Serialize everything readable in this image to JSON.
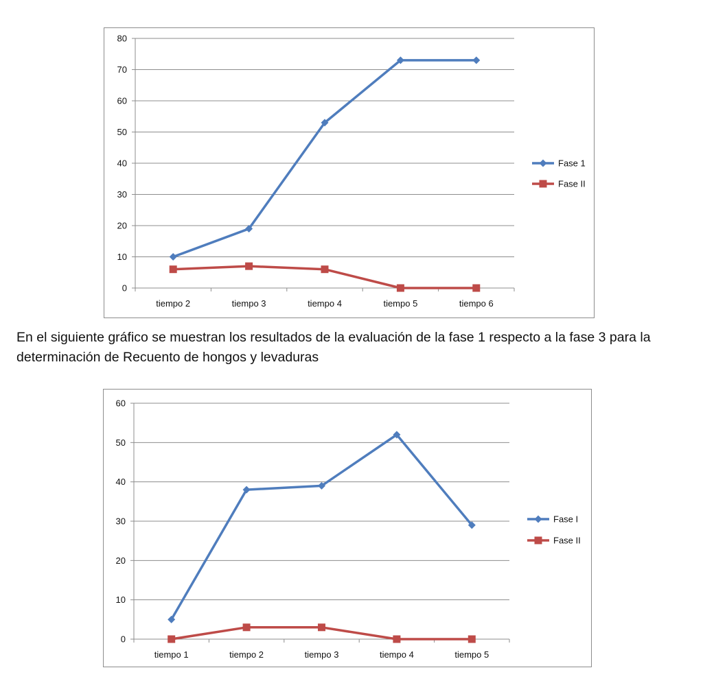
{
  "caption": "En el siguiente gráfico se muestran los resultados de la evaluación de la fase 1 respecto a la fase 3 para la determinación de Recuento de hongos y levaduras",
  "colors": {
    "series1": "#4f7dbd",
    "series2": "#be4b48",
    "grid": "#8c8c8c",
    "border": "#8c8c8c"
  },
  "chart_data": [
    {
      "type": "line",
      "title": "",
      "xlabel": "",
      "ylabel": "",
      "categories": [
        "tiempo 2",
        "tiempo 3",
        "tiempo 4",
        "tiempo 5",
        "tiempo 6"
      ],
      "ylim": [
        0,
        80
      ],
      "yticks": [
        0,
        10,
        20,
        30,
        40,
        50,
        60,
        70,
        80
      ],
      "grid": true,
      "legend_position": "right",
      "series": [
        {
          "name": "Fase 1",
          "marker": "diamond",
          "values": [
            10,
            19,
            53,
            73,
            73
          ]
        },
        {
          "name": "Fase II",
          "marker": "square",
          "values": [
            6,
            7,
            6,
            0,
            0
          ]
        }
      ]
    },
    {
      "type": "line",
      "title": "",
      "xlabel": "",
      "ylabel": "",
      "categories": [
        "tiempo 1",
        "tiempo 2",
        "tiempo 3",
        "tiempo 4",
        "tiempo 5"
      ],
      "ylim": [
        0,
        60
      ],
      "yticks": [
        0,
        10,
        20,
        30,
        40,
        50,
        60
      ],
      "grid": true,
      "legend_position": "right",
      "series": [
        {
          "name": "Fase I",
          "marker": "diamond",
          "values": [
            5,
            38,
            39,
            52,
            29
          ]
        },
        {
          "name": "Fase II",
          "marker": "square",
          "values": [
            0,
            3,
            3,
            0,
            0
          ]
        }
      ]
    }
  ]
}
